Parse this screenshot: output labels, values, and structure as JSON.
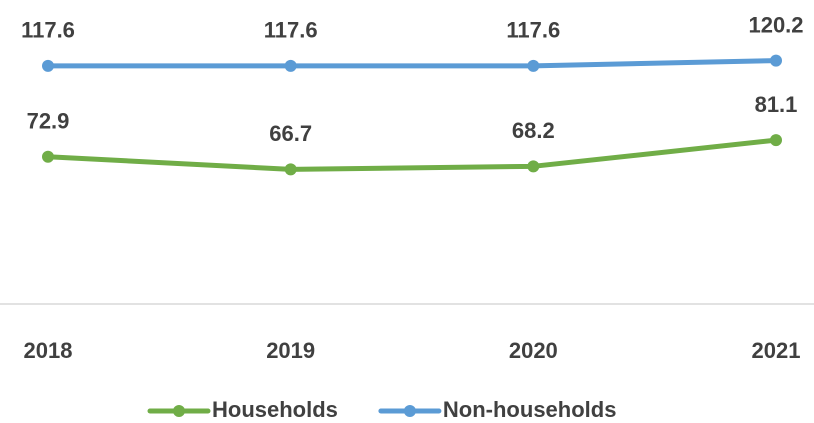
{
  "chart_data": {
    "type": "line",
    "categories": [
      "2018",
      "2019",
      "2020",
      "2021"
    ],
    "series": [
      {
        "name": "Households",
        "color": "#70ad47",
        "values": [
          72.9,
          66.7,
          68.2,
          81.1
        ]
      },
      {
        "name": "Non-households",
        "color": "#5b9bd5",
        "values": [
          117.6,
          117.6,
          117.6,
          120.2
        ]
      }
    ],
    "ylim": [
      0,
      150
    ],
    "legend": "bottom"
  }
}
